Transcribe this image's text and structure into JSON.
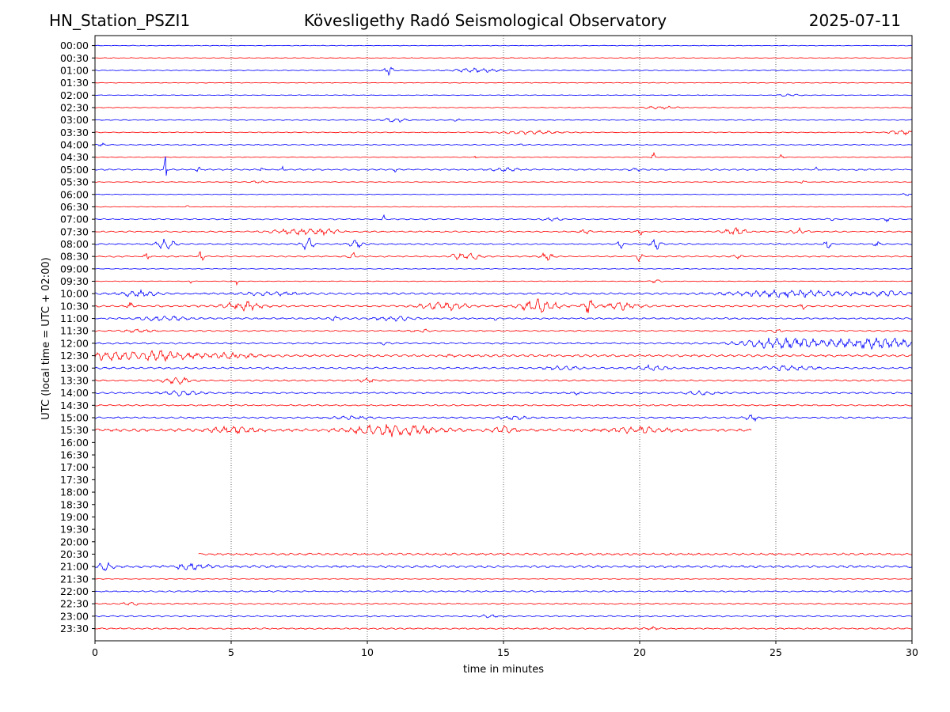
{
  "header": {
    "station": "HN_Station_PSZI1",
    "observatory": "Kövesligethy Radó Seismological Observatory",
    "date": "2025-07-11"
  },
  "chart_data": {
    "type": "line",
    "title": "Kövesligethy Radó Seismological Observatory",
    "xlabel": "time in minutes",
    "ylabel": "UTC (local time = UTC + 02:00)",
    "xlim": [
      0,
      30
    ],
    "xticks": [
      0,
      5,
      10,
      15,
      20,
      25,
      30
    ],
    "row_labels": [
      "00:00",
      "00:30",
      "01:00",
      "01:30",
      "02:00",
      "02:30",
      "03:00",
      "03:30",
      "04:00",
      "04:30",
      "05:00",
      "05:30",
      "06:00",
      "06:30",
      "07:00",
      "07:30",
      "08:00",
      "08:30",
      "09:00",
      "09:30",
      "10:00",
      "10:30",
      "11:00",
      "11:30",
      "12:00",
      "12:30",
      "13:00",
      "13:30",
      "14:00",
      "14:30",
      "15:00",
      "15:30",
      "16:00",
      "16:30",
      "17:00",
      "17:30",
      "18:00",
      "18:30",
      "19:00",
      "19:30",
      "20:00",
      "20:30",
      "21:00",
      "21:30",
      "22:00",
      "22:30",
      "23:00",
      "23:30"
    ],
    "row_colors": [
      "#0000ff",
      "#ff0000"
    ],
    "grid": "vertical dotted at major x ticks",
    "traces": [
      {
        "row": 0,
        "start": 0,
        "end": 30,
        "noise": 0.15,
        "events": []
      },
      {
        "row": 1,
        "start": 0,
        "end": 30,
        "noise": 0.15,
        "events": []
      },
      {
        "row": 2,
        "start": 0,
        "end": 30,
        "noise": 0.2,
        "events": [
          [
            10.8,
            0.15,
            2.2
          ],
          [
            14.0,
            0.9,
            0.8
          ]
        ]
      },
      {
        "row": 3,
        "start": 0,
        "end": 30,
        "noise": 0.15,
        "events": []
      },
      {
        "row": 4,
        "start": 0,
        "end": 30,
        "noise": 0.15,
        "events": [
          [
            25.5,
            0.4,
            0.5
          ]
        ]
      },
      {
        "row": 5,
        "start": 0,
        "end": 30,
        "noise": 0.15,
        "events": [
          [
            20.8,
            0.6,
            0.6
          ]
        ]
      },
      {
        "row": 6,
        "start": 0,
        "end": 30,
        "noise": 0.2,
        "events": [
          [
            11.0,
            0.5,
            0.8
          ],
          [
            13.3,
            0.1,
            0.8
          ]
        ]
      },
      {
        "row": 7,
        "start": 0,
        "end": 30,
        "noise": 0.2,
        "events": [
          [
            16.0,
            1.0,
            0.7
          ],
          [
            29.6,
            0.4,
            0.9
          ]
        ]
      },
      {
        "row": 8,
        "start": 0,
        "end": 30,
        "noise": 0.2,
        "events": [
          [
            0.2,
            0.2,
            0.8
          ],
          [
            15.7,
            0.1,
            0.6
          ]
        ]
      },
      {
        "row": 9,
        "start": 0,
        "end": 30,
        "noise": 0.15,
        "events": [
          [
            14.0,
            0.05,
            1.2
          ],
          [
            20.5,
            0.05,
            2.4
          ],
          [
            25.2,
            0.1,
            1.0
          ]
        ]
      },
      {
        "row": 10,
        "start": 0,
        "end": 30,
        "noise": 0.3,
        "events": [
          [
            2.6,
            0.05,
            8.5
          ],
          [
            3.8,
            0.1,
            1.2
          ],
          [
            6.1,
            0.05,
            1.6
          ],
          [
            6.9,
            0.05,
            1.4
          ],
          [
            11.0,
            0.05,
            1.4
          ],
          [
            15.0,
            0.6,
            0.6
          ],
          [
            19.8,
            0.3,
            0.5
          ],
          [
            26.5,
            0.05,
            1.0
          ]
        ]
      },
      {
        "row": 11,
        "start": 0,
        "end": 30,
        "noise": 0.15,
        "events": [
          [
            6.0,
            0.4,
            0.5
          ],
          [
            26.0,
            0.1,
            0.7
          ]
        ]
      },
      {
        "row": 12,
        "start": 0,
        "end": 30,
        "noise": 0.15,
        "events": [
          [
            29.8,
            0.1,
            0.9
          ]
        ]
      },
      {
        "row": 13,
        "start": 0,
        "end": 30,
        "noise": 0.15,
        "events": [
          [
            3.4,
            0.05,
            0.6
          ]
        ]
      },
      {
        "row": 14,
        "start": 0,
        "end": 30,
        "noise": 0.25,
        "events": [
          [
            10.6,
            0.05,
            1.6
          ],
          [
            16.8,
            0.3,
            0.8
          ],
          [
            27.0,
            0.1,
            0.8
          ],
          [
            29.1,
            0.1,
            1.0
          ]
        ]
      },
      {
        "row": 15,
        "start": 0,
        "end": 30,
        "noise": 0.3,
        "events": [
          [
            7.4,
            0.8,
            1.4
          ],
          [
            8.5,
            0.5,
            0.9
          ],
          [
            18.0,
            0.2,
            0.9
          ],
          [
            20.0,
            0.1,
            1.6
          ],
          [
            23.5,
            0.4,
            1.4
          ],
          [
            25.8,
            0.3,
            1.4
          ]
        ]
      },
      {
        "row": 16,
        "start": 0,
        "end": 30,
        "noise": 0.3,
        "events": [
          [
            2.6,
            0.3,
            2.4
          ],
          [
            7.8,
            0.2,
            3.0
          ],
          [
            9.6,
            0.3,
            1.4
          ],
          [
            19.3,
            0.1,
            2.0
          ],
          [
            20.6,
            0.2,
            2.0
          ],
          [
            26.9,
            0.1,
            2.6
          ],
          [
            28.7,
            0.1,
            1.2
          ]
        ]
      },
      {
        "row": 17,
        "start": 0,
        "end": 30,
        "noise": 0.3,
        "events": [
          [
            1.9,
            0.1,
            1.6
          ],
          [
            3.9,
            0.1,
            2.2
          ],
          [
            9.5,
            0.2,
            1.4
          ],
          [
            13.3,
            0.2,
            1.6
          ],
          [
            13.9,
            0.3,
            1.4
          ],
          [
            16.6,
            0.2,
            1.8
          ],
          [
            20.0,
            0.1,
            2.2
          ],
          [
            23.6,
            0.2,
            0.8
          ]
        ]
      },
      {
        "row": 18,
        "start": 0,
        "end": 30,
        "noise": 0.15,
        "events": []
      },
      {
        "row": 19,
        "start": 0,
        "end": 30,
        "noise": 0.15,
        "events": [
          [
            3.5,
            0.05,
            1.0
          ],
          [
            5.2,
            0.05,
            1.4
          ],
          [
            20.6,
            0.2,
            0.7
          ]
        ]
      },
      {
        "row": 20,
        "start": 0,
        "end": 30,
        "noise": 0.4,
        "events": [
          [
            1.6,
            0.6,
            1.3
          ],
          [
            6.5,
            1.0,
            0.7
          ],
          [
            25.5,
            2.0,
            1.3
          ],
          [
            29.0,
            0.8,
            1.0
          ]
        ]
      },
      {
        "row": 21,
        "start": 0,
        "end": 30,
        "noise": 0.4,
        "events": [
          [
            1.3,
            0.1,
            1.6
          ],
          [
            5.4,
            0.7,
            1.8
          ],
          [
            12.8,
            0.8,
            1.6
          ],
          [
            16.3,
            0.6,
            3.4
          ],
          [
            18.1,
            0.2,
            3.4
          ],
          [
            19.3,
            0.6,
            1.6
          ],
          [
            26.0,
            0.1,
            1.2
          ]
        ]
      },
      {
        "row": 22,
        "start": 0,
        "end": 30,
        "noise": 0.35,
        "events": [
          [
            2.5,
            0.8,
            1.0
          ],
          [
            8.8,
            0.2,
            1.0
          ],
          [
            11.0,
            0.8,
            0.8
          ],
          [
            14.7,
            0.05,
            1.0
          ]
        ]
      },
      {
        "row": 23,
        "start": 0,
        "end": 30,
        "noise": 0.3,
        "events": [
          [
            1.5,
            0.6,
            0.6
          ],
          [
            12.0,
            0.4,
            0.5
          ],
          [
            25.0,
            0.2,
            0.6
          ]
        ]
      },
      {
        "row": 24,
        "start": 0,
        "end": 30,
        "noise": 0.35,
        "events": [
          [
            10.6,
            0.2,
            0.6
          ],
          [
            25.3,
            1.4,
            2.4
          ],
          [
            28.6,
            1.6,
            2.2
          ]
        ]
      },
      {
        "row": 25,
        "start": 0,
        "end": 30,
        "noise": 0.5,
        "events": [
          [
            0.5,
            1.0,
            1.6
          ],
          [
            2.5,
            1.2,
            1.8
          ],
          [
            5.0,
            0.8,
            1.0
          ],
          [
            13.0,
            0.2,
            0.8
          ]
        ]
      },
      {
        "row": 26,
        "start": 0,
        "end": 30,
        "noise": 0.4,
        "events": [
          [
            17.2,
            0.6,
            0.7
          ],
          [
            20.5,
            0.5,
            1.1
          ],
          [
            25.5,
            0.8,
            1.0
          ]
        ]
      },
      {
        "row": 27,
        "start": 0,
        "end": 30,
        "noise": 0.35,
        "events": [
          [
            3.0,
            0.5,
            1.4
          ],
          [
            10.0,
            0.3,
            0.8
          ]
        ]
      },
      {
        "row": 28,
        "start": 0,
        "end": 30,
        "noise": 0.35,
        "events": [
          [
            3.2,
            0.6,
            1.0
          ],
          [
            17.7,
            0.1,
            0.8
          ],
          [
            22.3,
            0.5,
            0.8
          ]
        ]
      },
      {
        "row": 29,
        "start": 0,
        "end": 30,
        "noise": 0.3,
        "events": []
      },
      {
        "row": 30,
        "start": 0,
        "end": 30,
        "noise": 0.35,
        "events": [
          [
            9.5,
            0.6,
            0.7
          ],
          [
            15.3,
            0.5,
            0.7
          ],
          [
            24.2,
            0.3,
            1.2
          ]
        ]
      },
      {
        "row": 31,
        "start": 0,
        "end": 24.1,
        "noise": 0.6,
        "events": [
          [
            5.0,
            1.0,
            1.0
          ],
          [
            11.0,
            1.5,
            2.2
          ],
          [
            15.0,
            0.4,
            1.4
          ],
          [
            20.0,
            1.0,
            1.0
          ]
        ]
      },
      {
        "row": 41,
        "start": 3.8,
        "end": 30,
        "noise": 0.45,
        "events": []
      },
      {
        "row": 42,
        "start": 0,
        "end": 30,
        "noise": 0.5,
        "events": [
          [
            0.4,
            0.3,
            1.4
          ],
          [
            3.5,
            0.6,
            1.4
          ]
        ]
      },
      {
        "row": 43,
        "start": 0,
        "end": 30,
        "noise": 0.15,
        "events": []
      },
      {
        "row": 44,
        "start": 0,
        "end": 30,
        "noise": 0.3,
        "events": []
      },
      {
        "row": 45,
        "start": 0,
        "end": 30,
        "noise": 0.3,
        "events": [
          [
            1.3,
            0.3,
            0.6
          ]
        ]
      },
      {
        "row": 46,
        "start": 0,
        "end": 30,
        "noise": 0.3,
        "events": [
          [
            14.5,
            0.4,
            0.5
          ]
        ]
      },
      {
        "row": 47,
        "start": 0,
        "end": 30,
        "noise": 0.3,
        "events": [
          [
            20.5,
            0.3,
            0.6
          ]
        ]
      }
    ]
  }
}
